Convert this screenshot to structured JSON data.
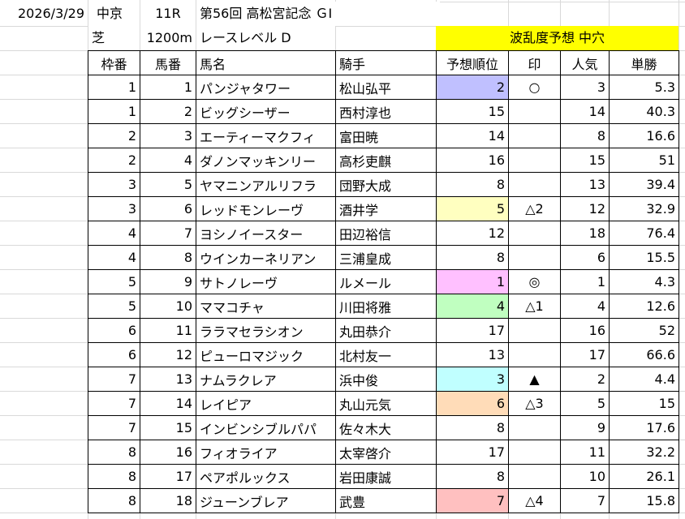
{
  "header": {
    "date": "2026/3/29",
    "venue": "中京",
    "race_no": "11R",
    "race_name": "第56回 高松宮記念 ＧⅠ",
    "surface": "芝",
    "distance": "1200m",
    "level": "レースレベル D",
    "forecast": "波乱度予想 中穴"
  },
  "columns": [
    "枠番",
    "馬番",
    "馬名",
    "騎手",
    "予想順位",
    "印",
    "人気",
    "単勝"
  ],
  "rows": [
    {
      "waku": "1",
      "uma": "1",
      "name": "パンジャタワー",
      "jockey": "松山弘平",
      "rank": "2",
      "mark": "○",
      "pop": "3",
      "odds": "5.3",
      "color": "#c0c0ff"
    },
    {
      "waku": "1",
      "uma": "2",
      "name": "ビッグシーザー",
      "jockey": "西村淳也",
      "rank": "15",
      "mark": "",
      "pop": "14",
      "odds": "40.3",
      "color": ""
    },
    {
      "waku": "2",
      "uma": "3",
      "name": "エーティーマクフィ",
      "jockey": "富田暁",
      "rank": "14",
      "mark": "",
      "pop": "8",
      "odds": "16.6",
      "color": ""
    },
    {
      "waku": "2",
      "uma": "4",
      "name": "ダノンマッキンリー",
      "jockey": "高杉吏麒",
      "rank": "16",
      "mark": "",
      "pop": "15",
      "odds": "51",
      "color": ""
    },
    {
      "waku": "3",
      "uma": "5",
      "name": "ヤマニンアルリフラ",
      "jockey": "団野大成",
      "rank": "8",
      "mark": "",
      "pop": "13",
      "odds": "39.4",
      "color": ""
    },
    {
      "waku": "3",
      "uma": "6",
      "name": "レッドモンレーヴ",
      "jockey": "酒井学",
      "rank": "5",
      "mark": "△2",
      "pop": "12",
      "odds": "32.9",
      "color": "#ffffc0"
    },
    {
      "waku": "4",
      "uma": "7",
      "name": "ヨシノイースター",
      "jockey": "田辺裕信",
      "rank": "12",
      "mark": "",
      "pop": "18",
      "odds": "76.4",
      "color": ""
    },
    {
      "waku": "4",
      "uma": "8",
      "name": "ウインカーネリアン",
      "jockey": "三浦皇成",
      "rank": "8",
      "mark": "",
      "pop": "6",
      "odds": "15.5",
      "color": ""
    },
    {
      "waku": "5",
      "uma": "9",
      "name": "サトノレーヴ",
      "jockey": "ルメール",
      "rank": "1",
      "mark": "◎",
      "pop": "1",
      "odds": "4.3",
      "color": "#ffc0ff"
    },
    {
      "waku": "5",
      "uma": "10",
      "name": "ママコチャ",
      "jockey": "川田将雅",
      "rank": "4",
      "mark": "△1",
      "pop": "4",
      "odds": "12.6",
      "color": "#c0ffc0"
    },
    {
      "waku": "6",
      "uma": "11",
      "name": "ララマセラシオン",
      "jockey": "丸田恭介",
      "rank": "17",
      "mark": "",
      "pop": "16",
      "odds": "52",
      "color": ""
    },
    {
      "waku": "6",
      "uma": "12",
      "name": "ピューロマジック",
      "jockey": "北村友一",
      "rank": "13",
      "mark": "",
      "pop": "17",
      "odds": "66.6",
      "color": ""
    },
    {
      "waku": "7",
      "uma": "13",
      "name": "ナムラクレア",
      "jockey": "浜中俊",
      "rank": "3",
      "mark": "▲",
      "pop": "2",
      "odds": "4.4",
      "color": "#c0ffff"
    },
    {
      "waku": "7",
      "uma": "14",
      "name": "レイピア",
      "jockey": "丸山元気",
      "rank": "6",
      "mark": "△3",
      "pop": "5",
      "odds": "15",
      "color": "#ffdcb8"
    },
    {
      "waku": "7",
      "uma": "15",
      "name": "インビンシブルパパ",
      "jockey": "佐々木大",
      "rank": "8",
      "mark": "",
      "pop": "9",
      "odds": "17.6",
      "color": ""
    },
    {
      "waku": "8",
      "uma": "16",
      "name": "フィオライア",
      "jockey": "太宰啓介",
      "rank": "17",
      "mark": "",
      "pop": "11",
      "odds": "32.2",
      "color": ""
    },
    {
      "waku": "8",
      "uma": "17",
      "name": "ペアポルックス",
      "jockey": "岩田康誠",
      "rank": "8",
      "mark": "",
      "pop": "10",
      "odds": "26.1",
      "color": ""
    },
    {
      "waku": "8",
      "uma": "18",
      "name": "ジューンブレア",
      "jockey": "武豊",
      "rank": "7",
      "mark": "△4",
      "pop": "7",
      "odds": "15.8",
      "color": "#ffc0c0"
    }
  ]
}
